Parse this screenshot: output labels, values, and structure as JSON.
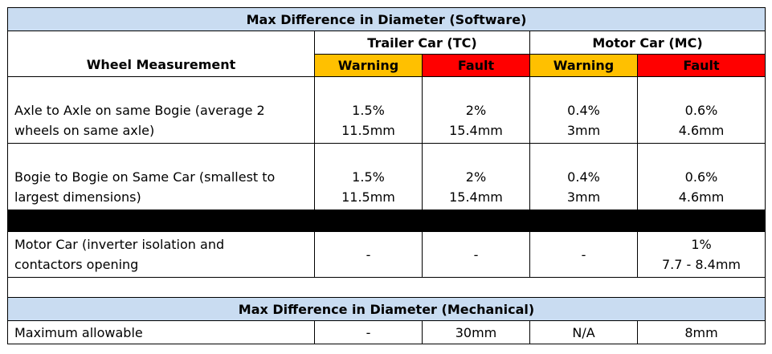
{
  "software_title": "Max Difference in Diameter (Software)",
  "header": {
    "wheel_measurement": "Wheel Measurement",
    "trailer_car": "Trailer Car (TC)",
    "motor_car": "Motor Car (MC)",
    "warning": "Warning",
    "fault": "Fault"
  },
  "colors": {
    "title_bg": "#c9dcf1",
    "warning_bg": "#ffc000",
    "fault_bg": "#ff0000"
  },
  "rows": [
    {
      "label": [
        "Axle to Axle on same Bogie (average 2",
        "wheels on same axle)"
      ],
      "tc_warning": [
        "1.5%",
        "11.5mm"
      ],
      "tc_fault": [
        "2%",
        "15.4mm"
      ],
      "mc_warning": [
        "0.4%",
        "3mm"
      ],
      "mc_fault": [
        "0.6%",
        "4.6mm"
      ]
    },
    {
      "label": [
        "Bogie to Bogie on Same Car (smallest to",
        "largest dimensions)"
      ],
      "tc_warning": [
        "1.5%",
        "11.5mm"
      ],
      "tc_fault": [
        "2%",
        "15.4mm"
      ],
      "mc_warning": [
        "0.4%",
        "3mm"
      ],
      "mc_fault": [
        "0.6%",
        "4.6mm"
      ]
    },
    {
      "label": [
        "Motor Car (inverter isolation and",
        "contactors opening"
      ],
      "tc_warning": "-",
      "tc_fault": "-",
      "mc_warning": "-",
      "mc_fault": [
        "1%",
        "7.7 - 8.4mm"
      ]
    }
  ],
  "mechanical_title": "Max Difference in Diameter (Mechanical)",
  "mechanical_row": {
    "label": "Maximum allowable",
    "tc_warning": "-",
    "tc_fault": "30mm",
    "mc_warning": "N/A",
    "mc_fault": "8mm"
  }
}
